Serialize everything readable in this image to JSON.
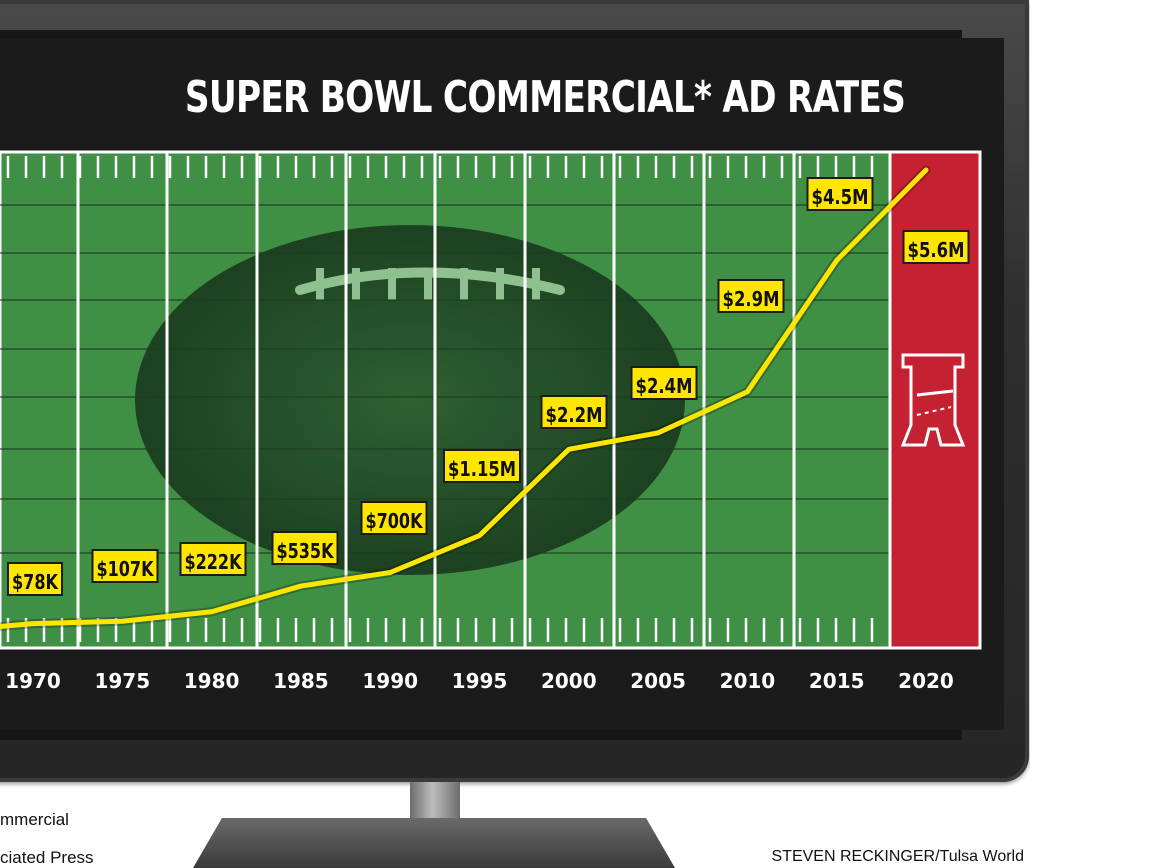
{
  "chart_data": {
    "type": "line",
    "title": "SUPER BOWL COMMERCIAL* AD RATES",
    "categories": [
      "1970",
      "1975",
      "1980",
      "1985",
      "1990",
      "1995",
      "2000",
      "2005",
      "2010",
      "2015",
      "2020"
    ],
    "x": [
      1967,
      1970,
      1975,
      1980,
      1985,
      1990,
      1995,
      2000,
      2005,
      2010,
      2015,
      2020
    ],
    "values": [
      42000,
      78000,
      107000,
      222000,
      535000,
      700000,
      1150000,
      2200000,
      2400000,
      2900000,
      4500000,
      5600000
    ],
    "labels": [
      "",
      "$78K",
      "$107K",
      "$222K",
      "$535K",
      "$700K",
      "$1.15M",
      "$2.2M",
      "$2.4M",
      "$2.9M",
      "$4.5M",
      "$5.6M"
    ],
    "ylim": [
      0,
      5600000
    ],
    "xlabel": "",
    "ylabel": "",
    "grid": true,
    "legend": "none",
    "line_color": "#ffe600",
    "label_fill": "#ffe600",
    "field_color": "#3f8f45",
    "endzone_color": "#c42232",
    "bg_color": "#1b1b1b"
  },
  "footnotes": {
    "asterisk_note": "mmercial",
    "source": "ciated Press"
  },
  "credit": "STEVEN RECKINGER/Tulsa World",
  "logo_icon": "afc-shield-icon"
}
